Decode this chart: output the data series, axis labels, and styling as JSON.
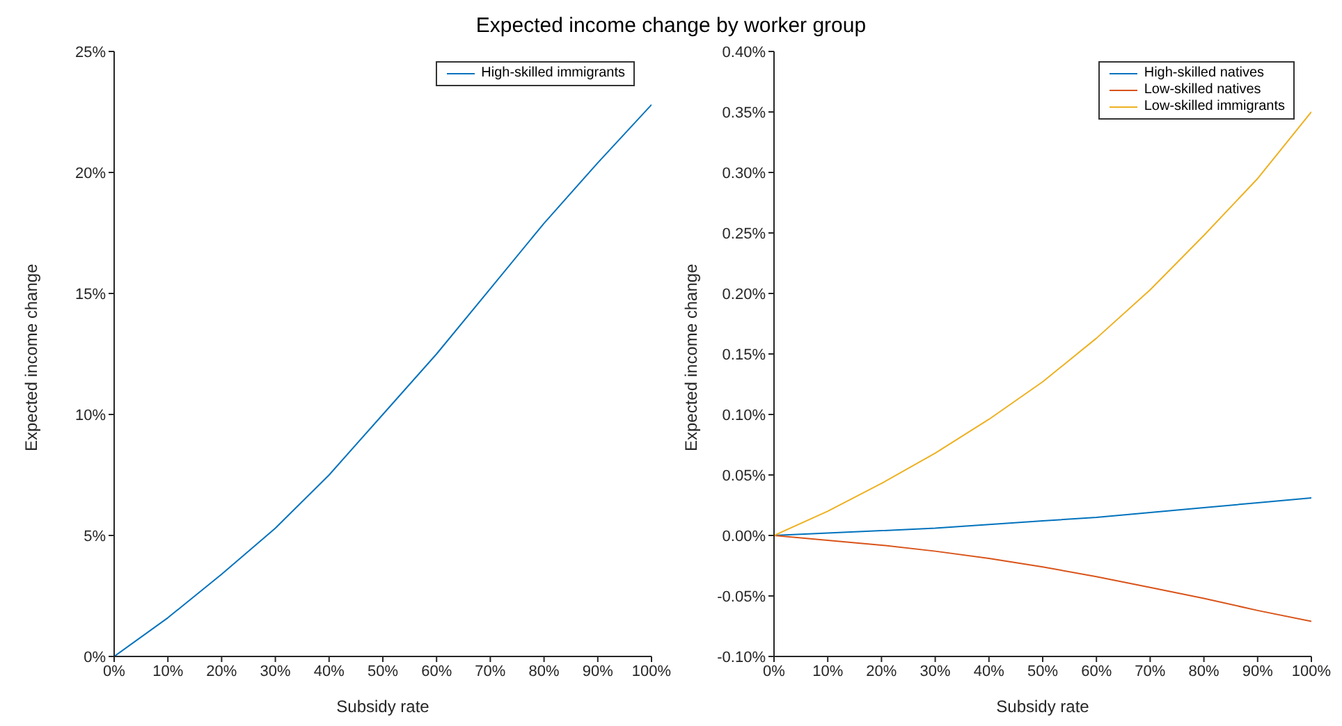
{
  "chart_data": [
    {
      "type": "line",
      "title": "Expected income change by worker group",
      "xlabel": "Subsidy rate",
      "ylabel": "Expected income change",
      "x": [
        0,
        10,
        20,
        30,
        40,
        50,
        60,
        70,
        80,
        90,
        100
      ],
      "series": [
        {
          "name": "High-skilled immigrants",
          "color": "#0072bd",
          "values": [
            0,
            1.6,
            3.4,
            5.3,
            7.5,
            10,
            12.5,
            15.2,
            17.9,
            20.4,
            22.8
          ]
        }
      ],
      "xlim": [
        0,
        100
      ],
      "xticks": [
        {
          "value": 0,
          "label": "0%"
        },
        {
          "value": 10,
          "label": "10%"
        },
        {
          "value": 20,
          "label": "20%"
        },
        {
          "value": 30,
          "label": "30%"
        },
        {
          "value": 40,
          "label": "40%"
        },
        {
          "value": 50,
          "label": "50%"
        },
        {
          "value": 60,
          "label": "60%"
        },
        {
          "value": 70,
          "label": "70%"
        },
        {
          "value": 80,
          "label": "80%"
        },
        {
          "value": 90,
          "label": "90%"
        },
        {
          "value": 100,
          "label": "100%"
        }
      ],
      "ylim": [
        0,
        25
      ],
      "yticks": [
        {
          "value": 0,
          "label": "0%"
        },
        {
          "value": 5,
          "label": "5%"
        },
        {
          "value": 10,
          "label": "10%"
        },
        {
          "value": 15,
          "label": "15%"
        },
        {
          "value": 20,
          "label": "20%"
        },
        {
          "value": 25,
          "label": "25%"
        }
      ],
      "grid": false,
      "legend": "top right",
      "marker": "none",
      "line_style": "solid"
    },
    {
      "type": "line",
      "xlabel": "Subsidy rate",
      "ylabel": "Expected income change",
      "x": [
        0,
        10,
        20,
        30,
        40,
        50,
        60,
        70,
        80,
        90,
        100
      ],
      "series": [
        {
          "name": "High-skilled natives",
          "color": "#0072bd",
          "values": [
            0,
            0.002,
            0.004,
            0.006,
            0.009,
            0.012,
            0.015,
            0.019,
            0.023,
            0.027,
            0.031
          ]
        },
        {
          "name": "Low-skilled natives",
          "color": "#d95319",
          "values": [
            0,
            -0.004,
            -0.008,
            -0.013,
            -0.019,
            -0.026,
            -0.034,
            -0.043,
            -0.052,
            -0.062,
            -0.071
          ]
        },
        {
          "name": "Low-skilled immigrants",
          "color": "#edb120",
          "values": [
            0,
            0.02,
            0.043,
            0.068,
            0.096,
            0.127,
            0.163,
            0.203,
            0.248,
            0.295,
            0.35
          ]
        }
      ],
      "xlim": [
        0,
        100
      ],
      "xticks": [
        {
          "value": 0,
          "label": "0%"
        },
        {
          "value": 10,
          "label": "10%"
        },
        {
          "value": 20,
          "label": "20%"
        },
        {
          "value": 30,
          "label": "30%"
        },
        {
          "value": 40,
          "label": "40%"
        },
        {
          "value": 50,
          "label": "50%"
        },
        {
          "value": 60,
          "label": "60%"
        },
        {
          "value": 70,
          "label": "70%"
        },
        {
          "value": 80,
          "label": "80%"
        },
        {
          "value": 90,
          "label": "90%"
        },
        {
          "value": 100,
          "label": "100%"
        }
      ],
      "ylim": [
        -0.1,
        0.4
      ],
      "yticks": [
        {
          "value": -0.1,
          "label": "-0.10%"
        },
        {
          "value": -0.05,
          "label": "-0.05%"
        },
        {
          "value": 0,
          "label": "0.00%"
        },
        {
          "value": 0.05,
          "label": "0.05%"
        },
        {
          "value": 0.1,
          "label": "0.10%"
        },
        {
          "value": 0.15,
          "label": "0.15%"
        },
        {
          "value": 0.2,
          "label": "0.20%"
        },
        {
          "value": 0.25,
          "label": "0.25%"
        },
        {
          "value": 0.3,
          "label": "0.30%"
        },
        {
          "value": 0.35,
          "label": "0.35%"
        },
        {
          "value": 0.4,
          "label": "0.40%"
        }
      ],
      "grid": false,
      "legend": "top right",
      "marker": "none",
      "line_style": "solid"
    }
  ]
}
